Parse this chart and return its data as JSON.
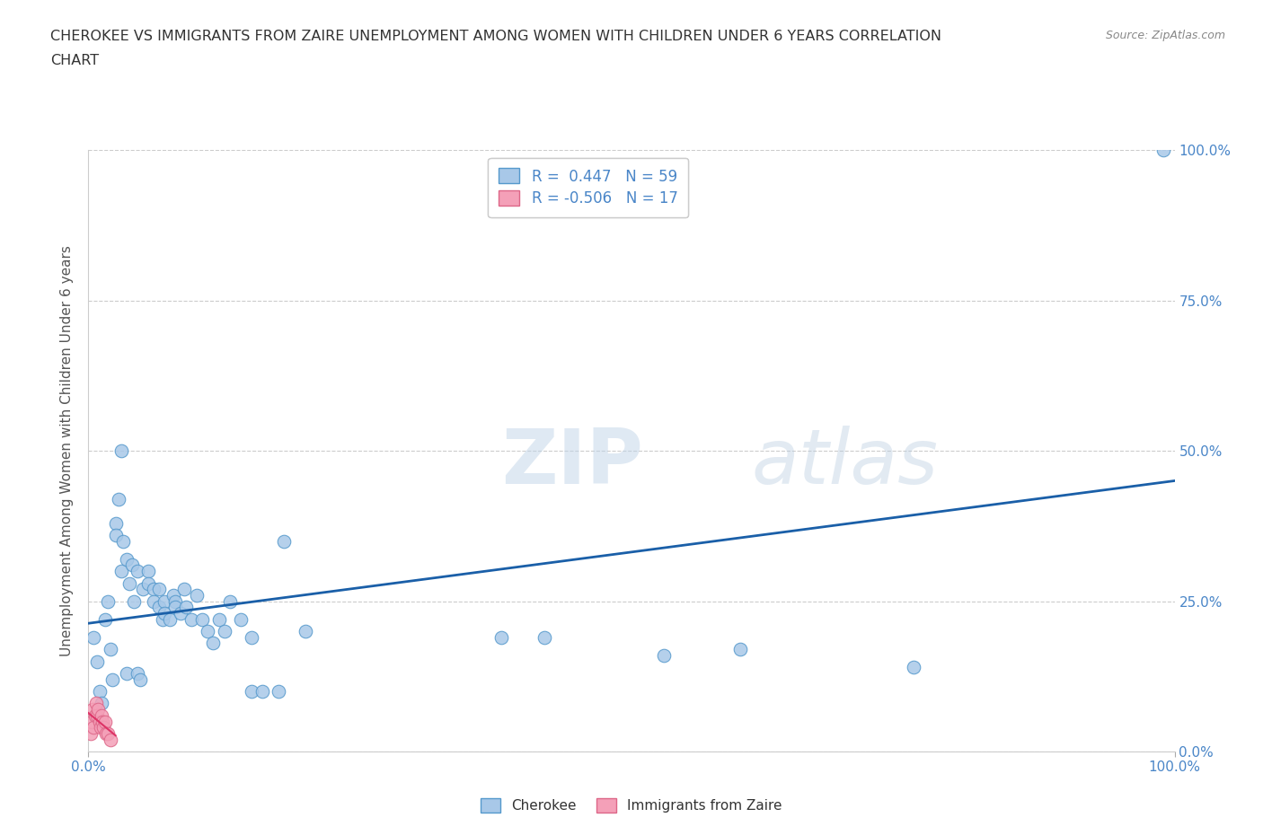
{
  "title_line1": "CHEROKEE VS IMMIGRANTS FROM ZAIRE UNEMPLOYMENT AMONG WOMEN WITH CHILDREN UNDER 6 YEARS CORRELATION",
  "title_line2": "CHART",
  "source": "Source: ZipAtlas.com",
  "ylabel": "Unemployment Among Women with Children Under 6 years",
  "ytick_labels": [
    "0.0%",
    "25.0%",
    "50.0%",
    "75.0%",
    "100.0%"
  ],
  "ytick_positions": [
    0.0,
    0.25,
    0.5,
    0.75,
    1.0
  ],
  "xlim": [
    0.0,
    1.0
  ],
  "ylim": [
    0.0,
    1.0
  ],
  "watermark_zip": "ZIP",
  "watermark_atlas": "atlas",
  "cherokee_color": "#a8c8e8",
  "zaire_color": "#f4a0b8",
  "cherokee_edge": "#5599cc",
  "zaire_edge": "#dd6688",
  "regression_color_cherokee": "#1a5fa8",
  "regression_color_zaire": "#dd3366",
  "cherokee_scatter": [
    [
      0.005,
      0.19
    ],
    [
      0.008,
      0.15
    ],
    [
      0.01,
      0.1
    ],
    [
      0.012,
      0.08
    ],
    [
      0.015,
      0.22
    ],
    [
      0.018,
      0.25
    ],
    [
      0.02,
      0.17
    ],
    [
      0.022,
      0.12
    ],
    [
      0.025,
      0.38
    ],
    [
      0.025,
      0.36
    ],
    [
      0.028,
      0.42
    ],
    [
      0.03,
      0.5
    ],
    [
      0.03,
      0.3
    ],
    [
      0.032,
      0.35
    ],
    [
      0.035,
      0.32
    ],
    [
      0.035,
      0.13
    ],
    [
      0.038,
      0.28
    ],
    [
      0.04,
      0.31
    ],
    [
      0.042,
      0.25
    ],
    [
      0.045,
      0.3
    ],
    [
      0.045,
      0.13
    ],
    [
      0.048,
      0.12
    ],
    [
      0.05,
      0.27
    ],
    [
      0.055,
      0.3
    ],
    [
      0.055,
      0.28
    ],
    [
      0.06,
      0.27
    ],
    [
      0.06,
      0.25
    ],
    [
      0.065,
      0.24
    ],
    [
      0.065,
      0.27
    ],
    [
      0.068,
      0.22
    ],
    [
      0.07,
      0.25
    ],
    [
      0.07,
      0.23
    ],
    [
      0.075,
      0.22
    ],
    [
      0.078,
      0.26
    ],
    [
      0.08,
      0.25
    ],
    [
      0.08,
      0.24
    ],
    [
      0.085,
      0.23
    ],
    [
      0.088,
      0.27
    ],
    [
      0.09,
      0.24
    ],
    [
      0.095,
      0.22
    ],
    [
      0.1,
      0.26
    ],
    [
      0.105,
      0.22
    ],
    [
      0.11,
      0.2
    ],
    [
      0.115,
      0.18
    ],
    [
      0.12,
      0.22
    ],
    [
      0.125,
      0.2
    ],
    [
      0.13,
      0.25
    ],
    [
      0.14,
      0.22
    ],
    [
      0.15,
      0.19
    ],
    [
      0.15,
      0.1
    ],
    [
      0.16,
      0.1
    ],
    [
      0.175,
      0.1
    ],
    [
      0.18,
      0.35
    ],
    [
      0.2,
      0.2
    ],
    [
      0.38,
      0.19
    ],
    [
      0.42,
      0.19
    ],
    [
      0.53,
      0.16
    ],
    [
      0.6,
      0.17
    ],
    [
      0.76,
      0.14
    ],
    [
      0.99,
      1.0
    ]
  ],
  "zaire_scatter": [
    [
      0.002,
      0.03
    ],
    [
      0.003,
      0.05
    ],
    [
      0.004,
      0.07
    ],
    [
      0.005,
      0.04
    ],
    [
      0.006,
      0.06
    ],
    [
      0.007,
      0.08
    ],
    [
      0.008,
      0.06
    ],
    [
      0.009,
      0.07
    ],
    [
      0.01,
      0.05
    ],
    [
      0.011,
      0.04
    ],
    [
      0.012,
      0.06
    ],
    [
      0.013,
      0.05
    ],
    [
      0.014,
      0.04
    ],
    [
      0.015,
      0.05
    ],
    [
      0.016,
      0.03
    ],
    [
      0.018,
      0.03
    ],
    [
      0.02,
      0.02
    ]
  ],
  "background_color": "#ffffff",
  "grid_color": "#cccccc",
  "title_color": "#333333",
  "axis_label_color": "#555555",
  "tick_label_color": "#4a86c8"
}
